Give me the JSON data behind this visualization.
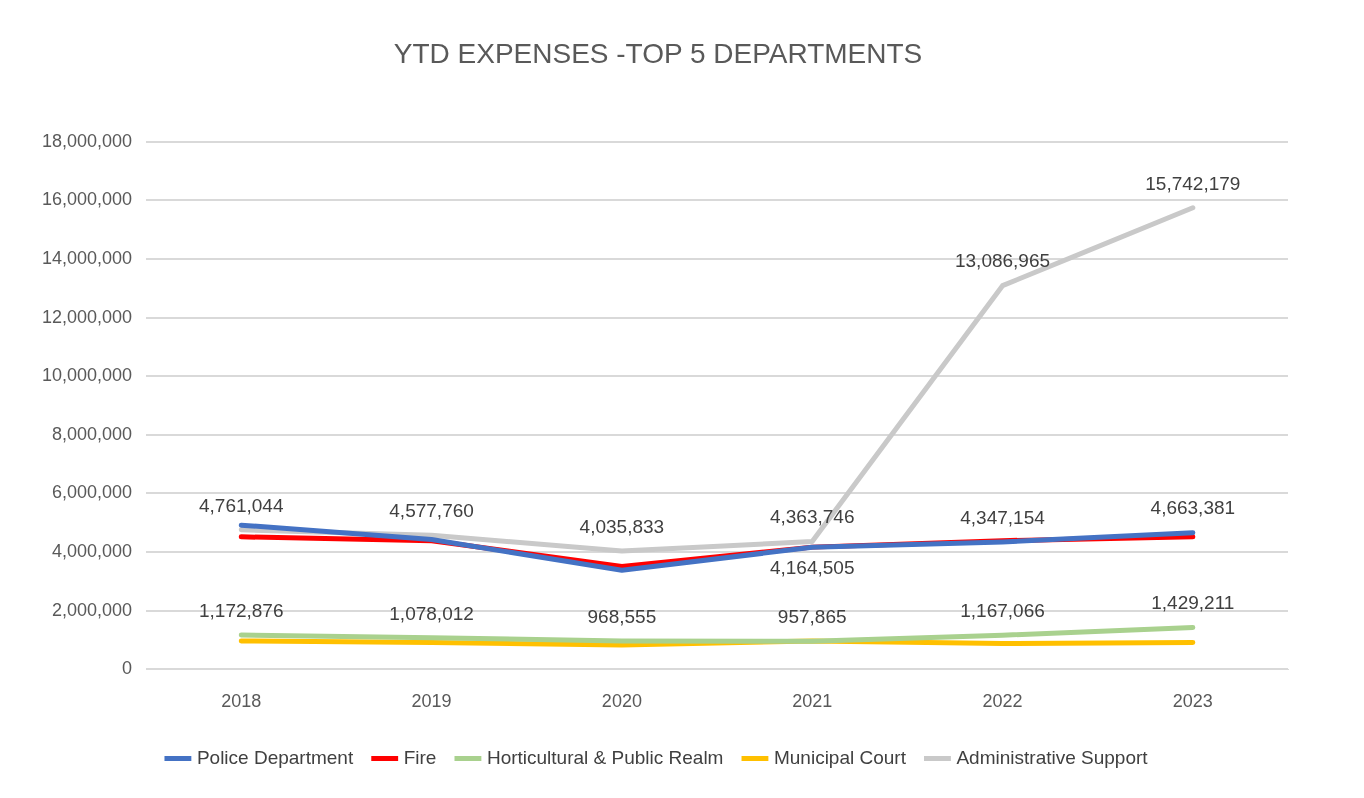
{
  "chart_data": {
    "type": "line",
    "title": "YTD EXPENSES -TOP 5 DEPARTMENTS",
    "categories": [
      "2018",
      "2019",
      "2020",
      "2021",
      "2022",
      "2023"
    ],
    "series": [
      {
        "name": "Police Department",
        "color": "#4472c4",
        "values": [
          4920000,
          4430000,
          3380000,
          4164505,
          4347154,
          4663381
        ],
        "value_labels": [
          null,
          null,
          null,
          "4,164,505",
          "4,347,154",
          "4,663,381"
        ]
      },
      {
        "name": "Fire",
        "color": "#ff0000",
        "values": [
          4520000,
          4390000,
          3510000,
          4170000,
          4390000,
          4520000
        ]
      },
      {
        "name": "Horticultural & Public Realm",
        "color": "#a9d18e",
        "values": [
          1172876,
          1078012,
          968555,
          957865,
          1167066,
          1429211
        ],
        "value_labels": [
          "1,172,876",
          "1,078,012",
          "968,555",
          "957,865",
          "1,167,066",
          "1,429,211"
        ]
      },
      {
        "name": "Municipal Court",
        "color": "#ffc000",
        "values": [
          970000,
          920000,
          830000,
          970000,
          880000,
          920000
        ]
      },
      {
        "name": "Administrative Support",
        "color": "#c9c9c9",
        "values": [
          4761044,
          4577760,
          4035833,
          4363746,
          13086965,
          15742179
        ],
        "value_labels": [
          "4,761,044",
          "4,577,760",
          "4,035,833",
          "4,363,746",
          "13,086,965",
          "15,742,179"
        ]
      }
    ],
    "ylim": [
      0,
      18000000
    ],
    "yticks": [
      0,
      {
        "value": 2000000,
        "label": "2,000,000"
      },
      {
        "value": 4000000,
        "label": "4,000,000"
      },
      {
        "value": 6000000,
        "label": "6,000,000"
      },
      {
        "value": 8000000,
        "label": "8,000,000"
      },
      {
        "value": 10000000,
        "label": "10,000,000"
      },
      {
        "value": 12000000,
        "label": "12,000,000"
      },
      {
        "value": 14000000,
        "label": "14,000,000"
      },
      {
        "value": 16000000,
        "label": "16,000,000"
      },
      {
        "value": 18000000,
        "label": "18,000,000"
      }
    ],
    "grid": "y",
    "legend": "bottom",
    "marker": "none",
    "line_style": "solid"
  }
}
